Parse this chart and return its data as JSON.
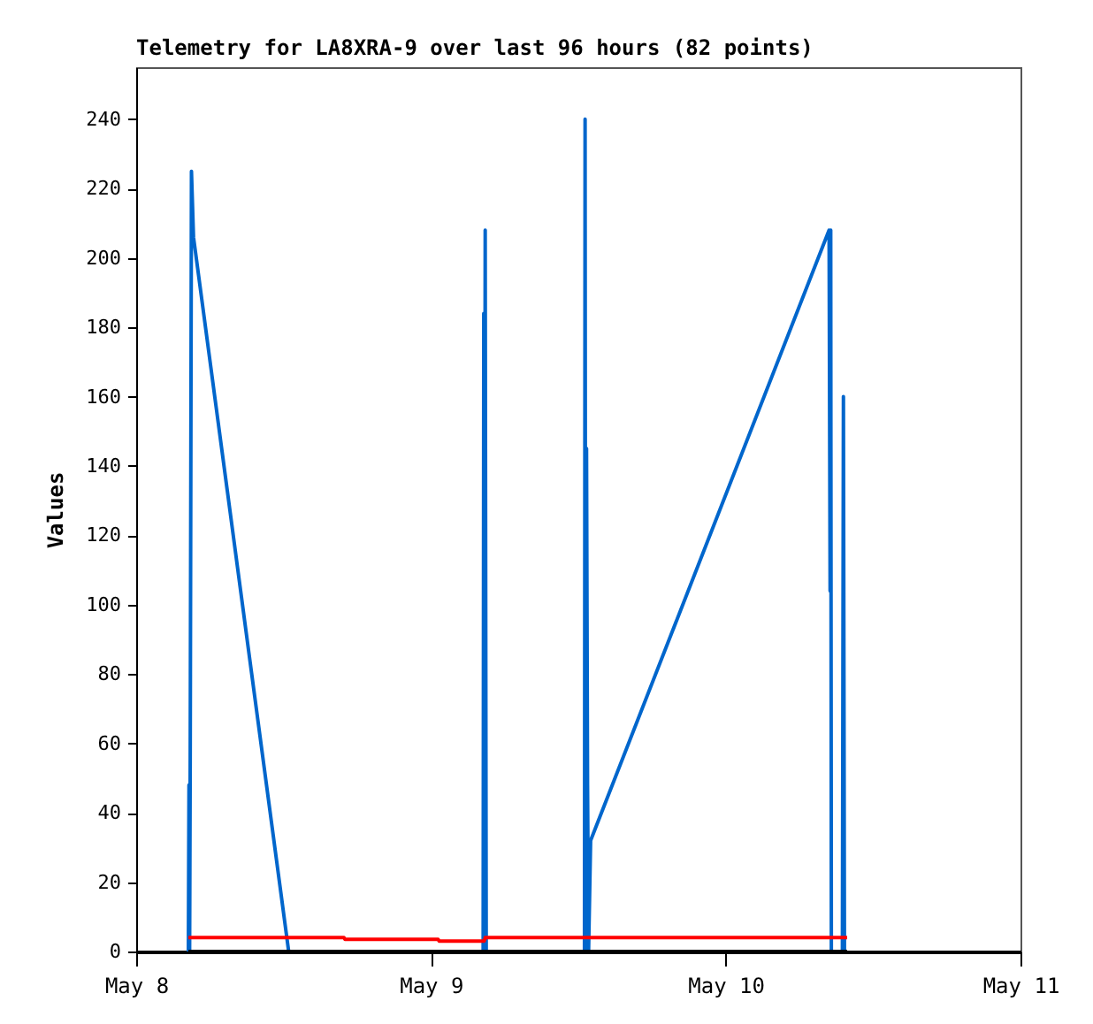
{
  "chart_data": {
    "type": "line",
    "title": "Telemetry for LA8XRA-9 over last 96 hours (82 points)",
    "ylabel": "Values",
    "xlim": [
      "--05-08",
      "--05-11"
    ],
    "xticks": [
      {
        "value": "--05-08",
        "label": "May 8"
      },
      {
        "value": "--05-09",
        "label": "May 9"
      },
      {
        "value": "--05-10",
        "label": "May 10"
      },
      {
        "value": "--05-11",
        "label": "May 11"
      }
    ],
    "ylim": [
      0,
      255
    ],
    "yticks": [
      0,
      20,
      40,
      60,
      80,
      100,
      120,
      140,
      160,
      180,
      200,
      220,
      240
    ],
    "grid": false,
    "marker": "none",
    "line_style": "solid",
    "series": [
      {
        "color": "#0066cc",
        "x": [
          "--05-08T04:15",
          "--05-08T04:18",
          "--05-08T04:21",
          "--05-08T04:24",
          "--05-08T04:30",
          "--05-08T04:40",
          "--05-08T12:25",
          "--05-09T04:15",
          "--05-09T04:18",
          "--05-09T04:21",
          "--05-09T04:25",
          "--05-09T04:30",
          "--05-09T12:30",
          "--05-09T12:33",
          "--05-09T12:36",
          "--05-09T12:40",
          "--05-09T12:45",
          "--05-09T12:50",
          "--05-09T13:00",
          "--05-10T08:25",
          "--05-10T08:30",
          "--05-10T08:33",
          "--05-10T08:36",
          "--05-10T09:30",
          "--05-10T09:35",
          "--05-10T09:40"
        ],
        "values": [
          0,
          48,
          0,
          56,
          225,
          206,
          0,
          0,
          184,
          0,
          208,
          0,
          0,
          240,
          0,
          145,
          48,
          0,
          32,
          208,
          104,
          208,
          0,
          0,
          160,
          0
        ]
      },
      {
        "color": "#ff0000",
        "x": [
          "--05-08T04:15",
          "--05-08T16:55",
          "--05-08T17:00",
          "--05-09T00:35",
          "--05-09T00:40",
          "--05-09T04:20",
          "--05-09T04:25",
          "--05-10T09:53"
        ],
        "values": [
          4,
          4,
          3.5,
          3.5,
          3,
          3,
          4,
          4
        ]
      },
      {
        "color": "#000000",
        "x": [
          "--05-08T04:15",
          "--05-10T09:53"
        ],
        "values": [
          0,
          0
        ]
      }
    ]
  }
}
